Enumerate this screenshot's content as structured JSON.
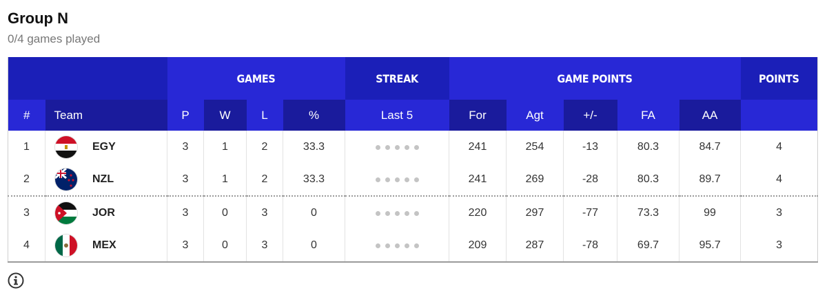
{
  "group": {
    "title": "Group N",
    "subtitle": "0/4 games played"
  },
  "headers": {
    "group": {
      "games": "GAMES",
      "streak": "STREAK",
      "game_points": "GAME POINTS",
      "points": "POINTS"
    },
    "cols": {
      "rank": "#",
      "team": "Team",
      "p": "P",
      "w": "W",
      "l": "L",
      "pct": "%",
      "last5": "Last 5",
      "for": "For",
      "agt": "Agt",
      "diff": "+/-",
      "fa": "FA",
      "aa": "AA"
    }
  },
  "colors": {
    "header_primary": "#1b1fb8",
    "header_secondary": "#2828d6",
    "header_dark": "#1a1b9c",
    "streak_dot": "#c4c4c4"
  },
  "rows": [
    {
      "rank": "1",
      "team": "EGY",
      "flag_icon": "egypt-flag-icon",
      "p": "3",
      "w": "1",
      "l": "2",
      "pct": "33.3",
      "for": "241",
      "agt": "254",
      "diff": "-13",
      "fa": "80.3",
      "aa": "84.7",
      "points": "4"
    },
    {
      "rank": "2",
      "team": "NZL",
      "flag_icon": "new-zealand-flag-icon",
      "p": "3",
      "w": "1",
      "l": "2",
      "pct": "33.3",
      "for": "241",
      "agt": "269",
      "diff": "-28",
      "fa": "80.3",
      "aa": "89.7",
      "points": "4"
    },
    {
      "rank": "3",
      "team": "JOR",
      "flag_icon": "jordan-flag-icon",
      "p": "3",
      "w": "0",
      "l": "3",
      "pct": "0",
      "for": "220",
      "agt": "297",
      "diff": "-77",
      "fa": "73.3",
      "aa": "99",
      "points": "3"
    },
    {
      "rank": "4",
      "team": "MEX",
      "flag_icon": "mexico-flag-icon",
      "p": "3",
      "w": "0",
      "l": "3",
      "pct": "0",
      "for": "209",
      "agt": "287",
      "diff": "-78",
      "fa": "69.7",
      "aa": "95.7",
      "points": "3"
    }
  ],
  "footer": {
    "info_icon": "info-icon"
  }
}
